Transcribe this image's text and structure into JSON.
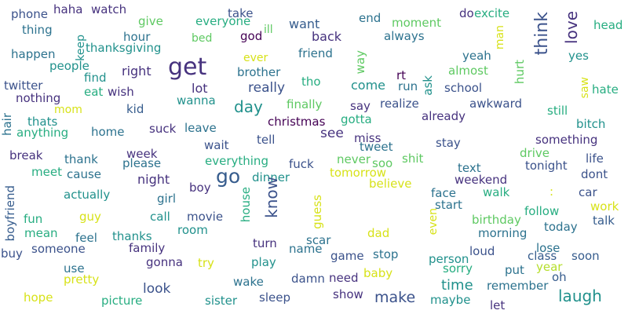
{
  "palette": {
    "purple": "#46327e",
    "indigo": "#3b528b",
    "blue": "#365c8d",
    "steel": "#2c728e",
    "teal": "#21918c",
    "green": "#27ad81",
    "lime": "#5ec962",
    "yellowgreen": "#b5de2b",
    "yellow": "#d7e219",
    "dark": "#440154"
  },
  "words": [
    "phone",
    "haha",
    "watch",
    "everyone",
    "take",
    "end",
    "moment",
    "do",
    "excite",
    "give",
    "thing",
    "ill",
    "want",
    "god",
    "always",
    "man",
    "head",
    "hour",
    "bed",
    "back",
    "keep",
    "happen",
    "thanksgiving",
    "get",
    "ever",
    "friend",
    "way",
    "yeah",
    "think",
    "love",
    "yes",
    "people",
    "find",
    "right",
    "brother",
    "tho",
    "rt",
    "run",
    "almost",
    "hurt",
    "twitter",
    "eat",
    "wish",
    "lot",
    "really",
    "come",
    "ask",
    "school",
    "hate",
    "nothing",
    "mom",
    "kid",
    "wanna",
    "day",
    "finally",
    "say",
    "realize",
    "awkward",
    "still",
    "hair",
    "thats",
    "christmas",
    "gotta",
    "already",
    "bitch",
    "anything",
    "home",
    "suck",
    "leave",
    "see",
    "miss",
    "something",
    "saw",
    "break",
    "week",
    "wait",
    "tell",
    "tweet",
    "stay",
    "drive",
    "thank",
    "please",
    "everything",
    "shit",
    "life",
    "meet",
    "cause",
    "night",
    "go",
    "fuck",
    "never",
    "soo",
    "tomorrow",
    "text",
    "tonight",
    "dont",
    "girl",
    "dinner",
    "believe",
    "weekend",
    "boyfriend",
    "actually",
    "boy",
    "know",
    "face",
    "walk",
    "car",
    "guy",
    "call",
    "movie",
    "house",
    "guess",
    "start",
    "work",
    "fun",
    "feel",
    "room",
    "dad",
    "even",
    "birthday",
    "follow",
    "talk",
    "mean",
    "thanks",
    "scar",
    "morning",
    "today",
    "buy",
    "someone",
    "family",
    "turn",
    "name",
    "lose",
    "class",
    "soon",
    "try",
    "play",
    "game",
    "stop",
    "person",
    "loud",
    "year",
    "use",
    "gonna",
    "baby",
    "sorry",
    "put",
    "oh",
    "pretty",
    "wake",
    "damn",
    "need",
    "time",
    "remember",
    "look",
    "make",
    "laugh",
    "hope",
    "picture",
    "sister",
    "sleep",
    "show",
    "maybe",
    "let",
    ":"
  ]
}
